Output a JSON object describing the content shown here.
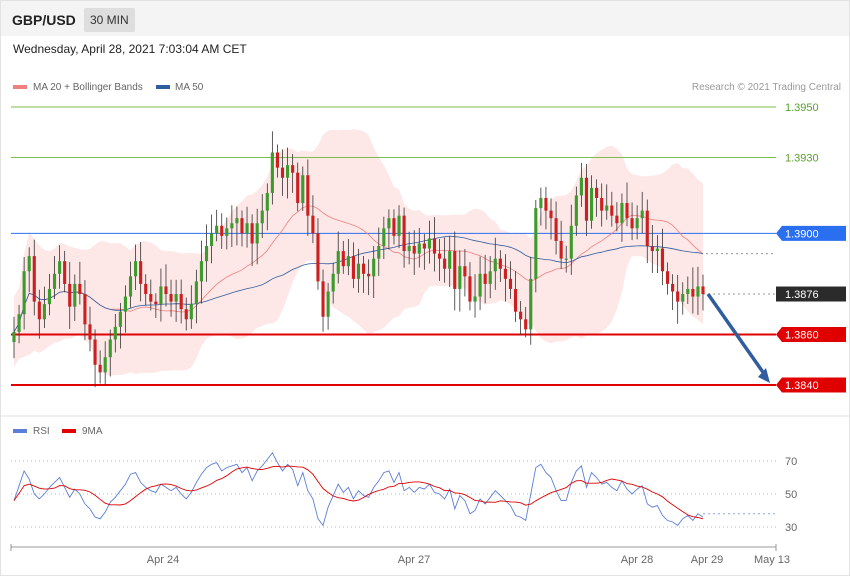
{
  "header": {
    "symbol": "GBP/USD",
    "timeframe": "30 MIN",
    "datetime": "Wednesday, April 28, 2021 7:03:04 AM CET"
  },
  "legend": {
    "ma20_label": "MA 20 + Bollinger Bands",
    "ma20_color": "#f08080",
    "ma50_label": "MA 50",
    "ma50_color": "#2f5d9e",
    "copyright": "Research © 2021 Trading Central"
  },
  "rsi_legend": {
    "rsi_label": "RSI",
    "rsi_color": "#5b7fd6",
    "ma_label": "9MA",
    "ma_color": "#e00000"
  },
  "chart_data": {
    "type": "candlestick",
    "title": "GBP/USD",
    "ylim": [
      1.3826,
      1.3962
    ],
    "x_labels": [
      "Apr 24",
      "Apr 27",
      "Apr 28",
      "Apr 29",
      "May 13"
    ],
    "levels": [
      {
        "value": 1.395,
        "label": "1.3950",
        "color": "#7cbf4a",
        "kind": "resistance"
      },
      {
        "value": 1.393,
        "label": "1.3930",
        "color": "#7cbf4a",
        "kind": "resistance"
      },
      {
        "value": 1.39,
        "label": "1.3900",
        "color": "#2a6ff0",
        "kind": "pivot"
      },
      {
        "value": 1.3876,
        "label": "1.3876",
        "color": "#333333",
        "kind": "last"
      },
      {
        "value": 1.386,
        "label": "1.3860",
        "color": "#e00000",
        "kind": "support"
      },
      {
        "value": 1.384,
        "label": "1.3840",
        "color": "#e00000",
        "kind": "support"
      }
    ],
    "close": [
      1.3861,
      1.3868,
      1.3885,
      1.3891,
      1.3873,
      1.3866,
      1.3872,
      1.3878,
      1.3884,
      1.3889,
      1.388,
      1.3871,
      1.388,
      1.3876,
      1.3864,
      1.3858,
      1.3848,
      1.3845,
      1.3851,
      1.3858,
      1.3863,
      1.3869,
      1.3875,
      1.3883,
      1.3889,
      1.388,
      1.3876,
      1.3873,
      1.3872,
      1.3879,
      1.3876,
      1.3873,
      1.3876,
      1.387,
      1.3866,
      1.3872,
      1.3881,
      1.3889,
      1.3895,
      1.39,
      1.3903,
      1.3899,
      1.3902,
      1.3904,
      1.3906,
      1.39,
      1.3904,
      1.3896,
      1.3904,
      1.3909,
      1.3916,
      1.3932,
      1.3926,
      1.3922,
      1.3927,
      1.3924,
      1.3912,
      1.3923,
      1.3907,
      1.39,
      1.3881,
      1.3867,
      1.3877,
      1.3884,
      1.3893,
      1.3887,
      1.3891,
      1.3882,
      1.3888,
      1.3884,
      1.3883,
      1.389,
      1.3895,
      1.3902,
      1.3906,
      1.3899,
      1.3907,
      1.3893,
      1.3895,
      1.3892,
      1.3896,
      1.3894,
      1.3898,
      1.3892,
      1.389,
      1.3886,
      1.3893,
      1.3878,
      1.3887,
      1.3883,
      1.3873,
      1.3875,
      1.3884,
      1.388,
      1.3885,
      1.389,
      1.3886,
      1.3882,
      1.3878,
      1.3869,
      1.3866,
      1.3862,
      1.3882,
      1.391,
      1.3914,
      1.3909,
      1.3906,
      1.3897,
      1.389,
      1.389,
      1.3903,
      1.3915,
      1.3922,
      1.3905,
      1.3918,
      1.3914,
      1.3909,
      1.3911,
      1.3907,
      1.3904,
      1.3912,
      1.3906,
      1.3902,
      1.3906,
      1.3909,
      1.3895,
      1.3893,
      1.3894,
      1.3885,
      1.388,
      1.3877,
      1.3873,
      1.3876,
      1.3878,
      1.3875,
      1.3879,
      1.3876
    ],
    "ma20_note": "upper/lower bands shown as shaded area",
    "rsi": {
      "ylim": [
        22,
        78
      ],
      "levels": [
        70,
        50,
        30
      ],
      "rsi_values": [
        46,
        55,
        64,
        59,
        50,
        47,
        50,
        54,
        57,
        60,
        54,
        48,
        53,
        50,
        44,
        41,
        36,
        35,
        39,
        45,
        48,
        52,
        56,
        62,
        63,
        57,
        54,
        52,
        51,
        56,
        54,
        52,
        54,
        50,
        47,
        51,
        57,
        62,
        66,
        68,
        69,
        64,
        66,
        67,
        68,
        63,
        66,
        58,
        64,
        67,
        71,
        75,
        69,
        64,
        68,
        65,
        55,
        63,
        52,
        47,
        35,
        31,
        42,
        49,
        56,
        51,
        54,
        47,
        52,
        49,
        48,
        54,
        58,
        63,
        64,
        57,
        63,
        52,
        54,
        51,
        54,
        53,
        56,
        51,
        50,
        47,
        53,
        41,
        49,
        46,
        38,
        40,
        47,
        44,
        48,
        52,
        49,
        46,
        43,
        37,
        36,
        34,
        50,
        66,
        68,
        63,
        60,
        52,
        46,
        46,
        57,
        64,
        67,
        54,
        63,
        60,
        56,
        57,
        54,
        52,
        58,
        53,
        50,
        53,
        55,
        44,
        42,
        43,
        37,
        34,
        33,
        31,
        35,
        37,
        34,
        38,
        36
      ],
      "last_value_guide": 38
    }
  }
}
